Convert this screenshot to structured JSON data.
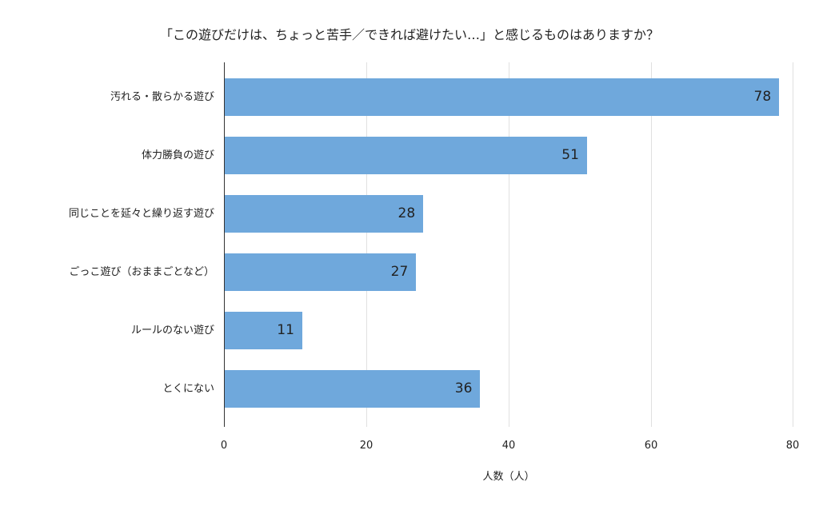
{
  "chart_data": {
    "type": "bar",
    "orientation": "horizontal",
    "title": "「この遊びだけは、ちょっと苦手／できれば避けたい…」と感じるものはありますか？",
    "xlabel": "人数（人）",
    "ylabel": "",
    "categories": [
      "汚れる・散らかる遊び",
      "体力勝負の遊び",
      "同じことを延々と繰り返す遊び",
      "ごっこ遊び（おままごとなど）",
      "ルールのない遊び",
      "とくにない"
    ],
    "values": [
      78,
      51,
      28,
      27,
      11,
      36
    ],
    "xlim": [
      0,
      80
    ],
    "xticks": [
      "0",
      "20",
      "40",
      "60",
      "80"
    ],
    "grid": true,
    "legend": "none",
    "bar_color": "#6fa8dc",
    "data_labels": true
  }
}
